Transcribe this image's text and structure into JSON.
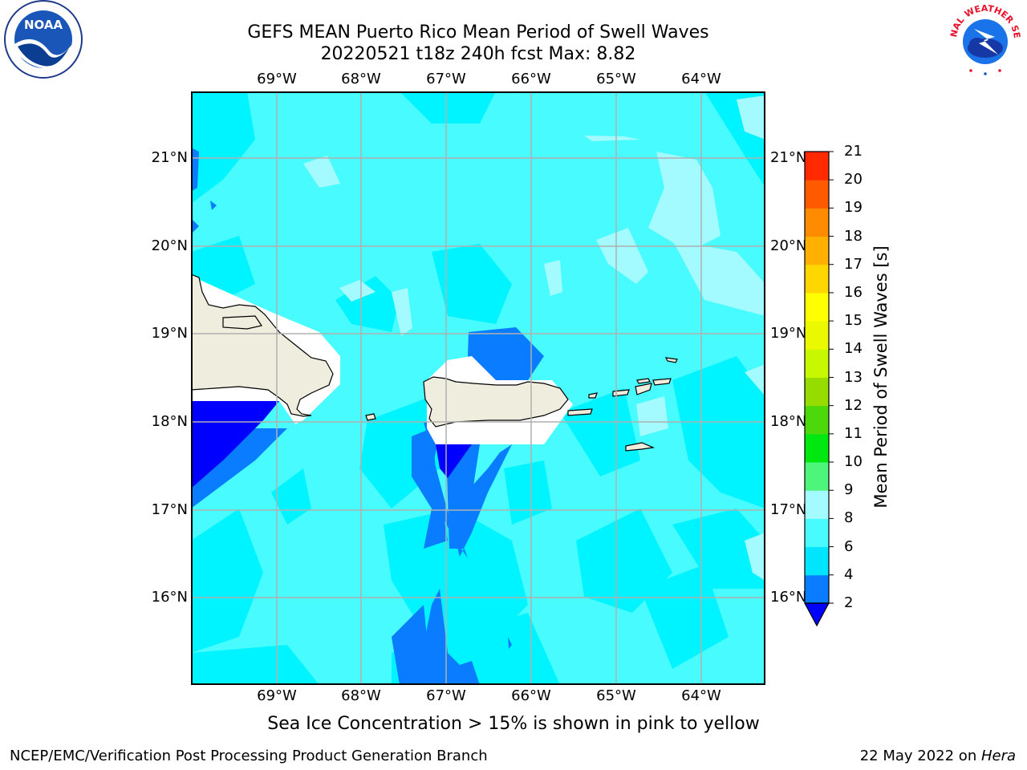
{
  "title_line1": "GEFS MEAN Puerto Rico Mean Period of Swell Waves",
  "title_line2": "20220521 t18z 240h fcst   Max: 8.82",
  "longitude_ticks": [
    "69°W",
    "68°W",
    "67°W",
    "66°W",
    "65°W",
    "64°W"
  ],
  "latitude_ticks": [
    "21°N",
    "20°N",
    "19°N",
    "18°N",
    "17°N",
    "16°N"
  ],
  "colorbar": {
    "label": "Mean Period of Swell Waves [s]",
    "levels": [
      "2",
      "4",
      "6",
      "8",
      "9",
      "10",
      "11",
      "12",
      "13",
      "14",
      "15",
      "16",
      "17",
      "18",
      "19",
      "20",
      "21"
    ],
    "colors": [
      "#0a7cff",
      "#00e5ff",
      "#47fbff",
      "#a4fbff",
      "#4ef57b",
      "#00e810",
      "#4dd80c",
      "#96dc00",
      "#c8f800",
      "#eaf800",
      "#ffff00",
      "#ffd700",
      "#ffb000",
      "#ff8c00",
      "#ff5a00",
      "#ff2a00"
    ],
    "extend_min_color": "#0000ff"
  },
  "note": "Sea Ice Concentration > 15% is shown in pink to yellow",
  "footer_left": "NCEP/EMC/Verification Post Processing Product Generation Branch",
  "footer_right_prefix": "22 May 2022 on ",
  "footer_right_host": "Hera",
  "logos": {
    "left": "NOAA",
    "right_arc": "NATIONAL WEATHER SERVICE"
  },
  "colors": {
    "ocean_base": "#47fbff",
    "swell_6": "#00f4ff",
    "swell_8": "#a4fbff",
    "swell_4": "#0a7cff",
    "swell_2": "#0000ff",
    "land": "#efeddd",
    "gridline": "#b0b0b0"
  }
}
